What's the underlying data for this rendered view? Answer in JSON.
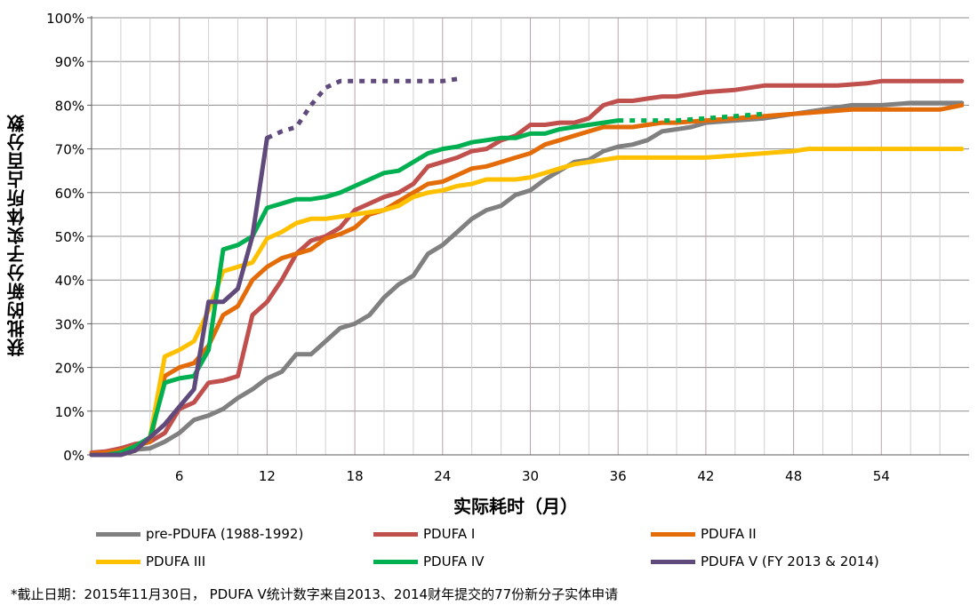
{
  "chart_data": {
    "type": "line",
    "title": "",
    "xlabel": "实际耗时（月）",
    "ylabel": "获批的新分子实体所占百分数",
    "xlim": [
      0,
      60
    ],
    "ylim": [
      0,
      100
    ],
    "x_ticks": [
      6,
      12,
      18,
      24,
      30,
      36,
      42,
      48,
      54
    ],
    "y_ticks": [
      "0%",
      "10%",
      "20%",
      "30%",
      "40%",
      "50%",
      "60%",
      "70%",
      "80%",
      "90%",
      "100%"
    ],
    "grid": "vertical lines every 2 months, horizontal lines every 10%",
    "legend_position": "bottom",
    "series": [
      {
        "name": "pre-PDUFA (1988-1992)",
        "color": "#808080",
        "points": [
          [
            0,
            0
          ],
          [
            1,
            0.3
          ],
          [
            2,
            0.8
          ],
          [
            3,
            1.2
          ],
          [
            4,
            1.5
          ],
          [
            5,
            3
          ],
          [
            6,
            5
          ],
          [
            7,
            8
          ],
          [
            8,
            9
          ],
          [
            9,
            10.5
          ],
          [
            10,
            13
          ],
          [
            11,
            15
          ],
          [
            12,
            17.5
          ],
          [
            13,
            19
          ],
          [
            14,
            23
          ],
          [
            15,
            23
          ],
          [
            16,
            26
          ],
          [
            17,
            29
          ],
          [
            18,
            30
          ],
          [
            19,
            32
          ],
          [
            20,
            36
          ],
          [
            21,
            39
          ],
          [
            22,
            41
          ],
          [
            23,
            46
          ],
          [
            24,
            48
          ],
          [
            25,
            51
          ],
          [
            26,
            54
          ],
          [
            27,
            56
          ],
          [
            28,
            57
          ],
          [
            29,
            59.5
          ],
          [
            30,
            60.5
          ],
          [
            31,
            63
          ],
          [
            32,
            65
          ],
          [
            33,
            67
          ],
          [
            34,
            67.5
          ],
          [
            35,
            69.5
          ],
          [
            36,
            70.5
          ],
          [
            37,
            71
          ],
          [
            38,
            72
          ],
          [
            39,
            74
          ],
          [
            40,
            74.5
          ],
          [
            41,
            75
          ],
          [
            42,
            76
          ],
          [
            44,
            76.5
          ],
          [
            46,
            77
          ],
          [
            48,
            78
          ],
          [
            50,
            79
          ],
          [
            52,
            80
          ],
          [
            54,
            80
          ],
          [
            56,
            80.5
          ],
          [
            59.5,
            80.5
          ]
        ],
        "dashed_from": null
      },
      {
        "name": "PDUFA I",
        "color": "#C0504D",
        "points": [
          [
            0,
            0.5
          ],
          [
            1,
            0.8
          ],
          [
            2,
            1.5
          ],
          [
            3,
            2.5
          ],
          [
            4,
            3
          ],
          [
            5,
            5
          ],
          [
            6,
            10.5
          ],
          [
            7,
            12
          ],
          [
            8,
            16.5
          ],
          [
            9,
            17
          ],
          [
            10,
            18
          ],
          [
            11,
            32
          ],
          [
            12,
            35
          ],
          [
            13,
            40
          ],
          [
            14,
            46
          ],
          [
            15,
            49
          ],
          [
            16,
            50
          ],
          [
            17,
            52
          ],
          [
            18,
            56
          ],
          [
            19,
            57.5
          ],
          [
            20,
            59
          ],
          [
            21,
            60
          ],
          [
            22,
            62
          ],
          [
            23,
            66
          ],
          [
            24,
            67
          ],
          [
            25,
            68
          ],
          [
            26,
            69.5
          ],
          [
            27,
            70
          ],
          [
            28,
            72
          ],
          [
            29,
            73
          ],
          [
            30,
            75.5
          ],
          [
            31,
            75.5
          ],
          [
            32,
            76
          ],
          [
            33,
            76
          ],
          [
            34,
            77
          ],
          [
            35,
            80
          ],
          [
            36,
            81
          ],
          [
            37,
            81
          ],
          [
            38,
            81.5
          ],
          [
            39,
            82
          ],
          [
            40,
            82
          ],
          [
            41,
            82.5
          ],
          [
            42,
            83
          ],
          [
            44,
            83.5
          ],
          [
            46,
            84.5
          ],
          [
            48,
            84.5
          ],
          [
            51,
            84.5
          ],
          [
            53,
            85
          ],
          [
            54,
            85.5
          ],
          [
            59.5,
            85.5
          ]
        ],
        "dashed_from": null
      },
      {
        "name": "PDUFA II",
        "color": "#E36C09",
        "points": [
          [
            0,
            0.3
          ],
          [
            1,
            0.5
          ],
          [
            2,
            1
          ],
          [
            3,
            2
          ],
          [
            4,
            3
          ],
          [
            5,
            18
          ],
          [
            6,
            20
          ],
          [
            7,
            21
          ],
          [
            8,
            25
          ],
          [
            9,
            32
          ],
          [
            10,
            34
          ],
          [
            11,
            40
          ],
          [
            12,
            43
          ],
          [
            13,
            45
          ],
          [
            14,
            46
          ],
          [
            15,
            47
          ],
          [
            16,
            49.5
          ],
          [
            17,
            50.5
          ],
          [
            18,
            52
          ],
          [
            19,
            55
          ],
          [
            20,
            56
          ],
          [
            21,
            58
          ],
          [
            22,
            60
          ],
          [
            23,
            62
          ],
          [
            24,
            62.5
          ],
          [
            25,
            64
          ],
          [
            26,
            65.5
          ],
          [
            27,
            66
          ],
          [
            28,
            67
          ],
          [
            29,
            68
          ],
          [
            30,
            69
          ],
          [
            31,
            71
          ],
          [
            32,
            72
          ],
          [
            33,
            73
          ],
          [
            34,
            74
          ],
          [
            35,
            75
          ],
          [
            36,
            75
          ],
          [
            37,
            75
          ],
          [
            38,
            75.5
          ],
          [
            39,
            76
          ],
          [
            40,
            76
          ],
          [
            42,
            76.5
          ],
          [
            44,
            77
          ],
          [
            46,
            77.5
          ],
          [
            48,
            78
          ],
          [
            50,
            78.5
          ],
          [
            52,
            79
          ],
          [
            54,
            79
          ],
          [
            56,
            79
          ],
          [
            58,
            79
          ],
          [
            59.5,
            80
          ]
        ],
        "dashed_from": null
      },
      {
        "name": "PDUFA III",
        "color": "#FFC000",
        "points": [
          [
            0,
            0
          ],
          [
            1,
            0
          ],
          [
            2,
            0
          ],
          [
            3,
            1
          ],
          [
            4,
            4
          ],
          [
            5,
            22.5
          ],
          [
            6,
            24
          ],
          [
            7,
            26
          ],
          [
            8,
            33
          ],
          [
            9,
            42
          ],
          [
            10,
            43
          ],
          [
            11,
            44
          ],
          [
            12,
            49.5
          ],
          [
            13,
            51
          ],
          [
            14,
            53
          ],
          [
            15,
            54
          ],
          [
            16,
            54
          ],
          [
            17,
            54.5
          ],
          [
            18,
            55
          ],
          [
            19,
            55.5
          ],
          [
            20,
            56
          ],
          [
            21,
            57
          ],
          [
            22,
            59
          ],
          [
            23,
            60
          ],
          [
            24,
            60.5
          ],
          [
            25,
            61.5
          ],
          [
            26,
            62
          ],
          [
            27,
            63
          ],
          [
            28,
            63
          ],
          [
            29,
            63
          ],
          [
            30,
            63.5
          ],
          [
            31,
            64.5
          ],
          [
            32,
            65.5
          ],
          [
            33,
            66.5
          ],
          [
            34,
            67
          ],
          [
            35,
            67.5
          ],
          [
            36,
            68
          ],
          [
            38,
            68
          ],
          [
            40,
            68
          ],
          [
            42,
            68
          ],
          [
            44,
            68.5
          ],
          [
            46,
            69
          ],
          [
            48,
            69.5
          ],
          [
            49,
            70
          ],
          [
            51,
            70
          ],
          [
            53,
            70
          ],
          [
            55,
            70
          ],
          [
            59.5,
            70
          ]
        ],
        "dashed_from": null
      },
      {
        "name": "PDUFA IV",
        "color": "#00B050",
        "points": [
          [
            0,
            0
          ],
          [
            1,
            0
          ],
          [
            2,
            0.5
          ],
          [
            3,
            2
          ],
          [
            4,
            4
          ],
          [
            5,
            16.5
          ],
          [
            6,
            17.5
          ],
          [
            7,
            18
          ],
          [
            8,
            24
          ],
          [
            9,
            47
          ],
          [
            10,
            48
          ],
          [
            11,
            50
          ],
          [
            12,
            56.5
          ],
          [
            13,
            57.5
          ],
          [
            14,
            58.5
          ],
          [
            15,
            58.5
          ],
          [
            16,
            59
          ],
          [
            17,
            60
          ],
          [
            18,
            61.5
          ],
          [
            19,
            63
          ],
          [
            20,
            64.5
          ],
          [
            21,
            65
          ],
          [
            22,
            67
          ],
          [
            23,
            69
          ],
          [
            24,
            70
          ],
          [
            25,
            70.5
          ],
          [
            26,
            71.5
          ],
          [
            27,
            72
          ],
          [
            28,
            72.5
          ],
          [
            29,
            72.5
          ],
          [
            30,
            73.5
          ],
          [
            31,
            73.5
          ],
          [
            32,
            74.5
          ],
          [
            33,
            75
          ],
          [
            34,
            75.5
          ],
          [
            35,
            76
          ],
          [
            36,
            76.5
          ],
          [
            38,
            76.5
          ],
          [
            40,
            76.5
          ],
          [
            42,
            77
          ],
          [
            44,
            77.5
          ],
          [
            46,
            78
          ]
        ],
        "dashed_from": 36
      },
      {
        "name": "PDUFA V (FY 2013 & 2014)",
        "color": "#604A7B",
        "points": [
          [
            0,
            0
          ],
          [
            1,
            0
          ],
          [
            2,
            0
          ],
          [
            3,
            1
          ],
          [
            4,
            4
          ],
          [
            5,
            7
          ],
          [
            6,
            11
          ],
          [
            7,
            15
          ],
          [
            8,
            35
          ],
          [
            9,
            35
          ],
          [
            10,
            38
          ],
          [
            11,
            50
          ],
          [
            12,
            72.5
          ],
          [
            13,
            74
          ],
          [
            14,
            75
          ],
          [
            15,
            80
          ],
          [
            16,
            84
          ],
          [
            17,
            85.5
          ],
          [
            18,
            85.5
          ],
          [
            20,
            85.5
          ],
          [
            22,
            85.5
          ],
          [
            24,
            85.5
          ],
          [
            25,
            86
          ]
        ],
        "dashed_from": 12
      }
    ]
  },
  "footnote": "*截止日期：2015年11月30日， PDUFA V统计数字来自2013、2014财年提交的77份新分子实体申请"
}
